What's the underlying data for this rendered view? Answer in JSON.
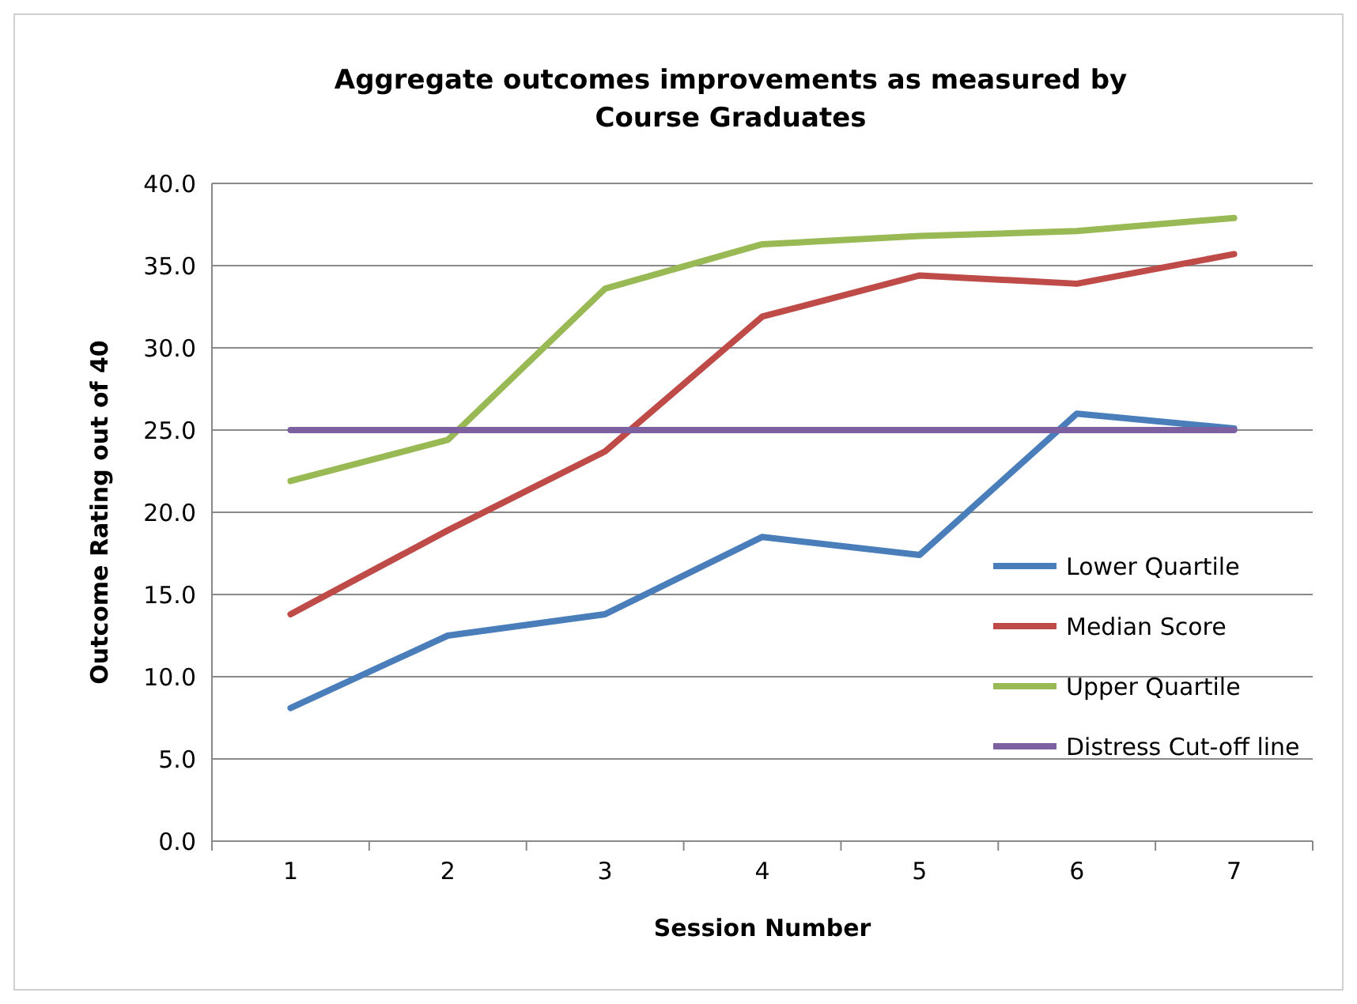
{
  "chart_data": {
    "type": "line",
    "title": "Aggregate outcomes improvements as measured by Course Graduates",
    "xlabel": "Session Number",
    "ylabel": "Outcome Rating out of 40",
    "categories": [
      "1",
      "2",
      "3",
      "4",
      "5",
      "6",
      "7"
    ],
    "series": [
      {
        "name": "Lower Quartile",
        "color": "#4a7ebb",
        "values": [
          8.1,
          12.5,
          13.8,
          18.5,
          17.4,
          26.0,
          25.1
        ]
      },
      {
        "name": "Median Score",
        "color": "#be4b48",
        "values": [
          13.8,
          18.9,
          23.7,
          31.9,
          34.4,
          33.9,
          35.7
        ]
      },
      {
        "name": "Upper Quartile",
        "color": "#98b954",
        "values": [
          21.9,
          24.4,
          33.6,
          36.3,
          36.8,
          37.1,
          37.9
        ]
      },
      {
        "name": "Distress Cut-off line",
        "color": "#7d60a0",
        "values": [
          25,
          25,
          25,
          25,
          25,
          25,
          25
        ]
      }
    ],
    "ylim": [
      0,
      40
    ],
    "yticks": [
      {
        "value": 0,
        "label": "0.0"
      },
      {
        "value": 5,
        "label": "5.0"
      },
      {
        "value": 10,
        "label": "10.0"
      },
      {
        "value": 15,
        "label": "15.0"
      },
      {
        "value": 20,
        "label": "20.0"
      },
      {
        "value": 25,
        "label": "25.0"
      },
      {
        "value": 30,
        "label": "30.0"
      },
      {
        "value": 35,
        "label": "35.0"
      },
      {
        "value": 40,
        "label": "40.0"
      }
    ],
    "grid": "y",
    "legend": "right",
    "marker": "none",
    "line_style": "solid"
  }
}
